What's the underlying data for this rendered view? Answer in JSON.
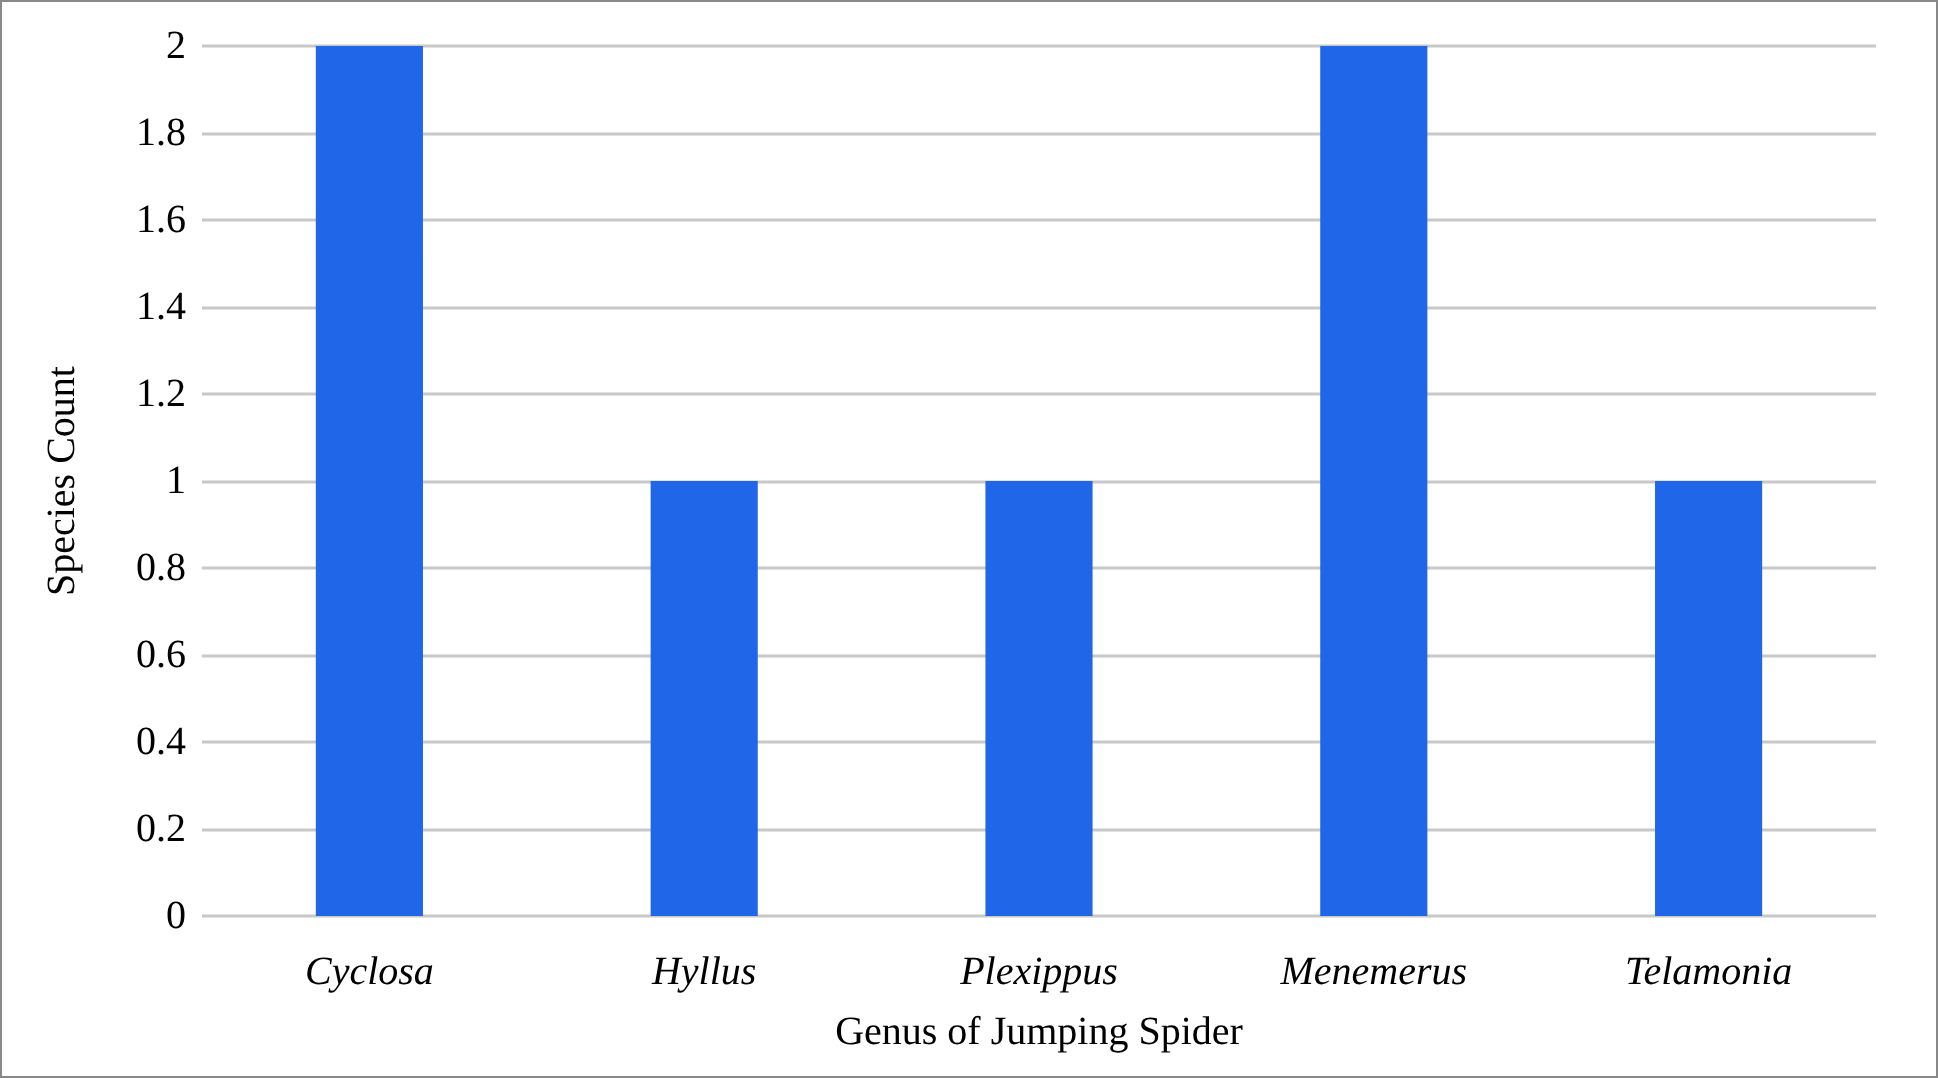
{
  "chart_data": {
    "type": "bar",
    "xlabel": "Genus of Jumping Spider",
    "ylabel": "Species Count",
    "categories": [
      "Cyclosa",
      "Hyllus",
      "Plexippus",
      "Menemerus",
      "Telamonia"
    ],
    "values": [
      2,
      1,
      1,
      2,
      1
    ],
    "color": "#1f66e8",
    "ylim": [
      0,
      2
    ],
    "yticks": [
      0,
      0.2,
      0.4,
      0.6,
      0.8,
      1,
      1.2,
      1.4,
      1.6,
      1.8,
      2
    ],
    "grid": "y"
  }
}
